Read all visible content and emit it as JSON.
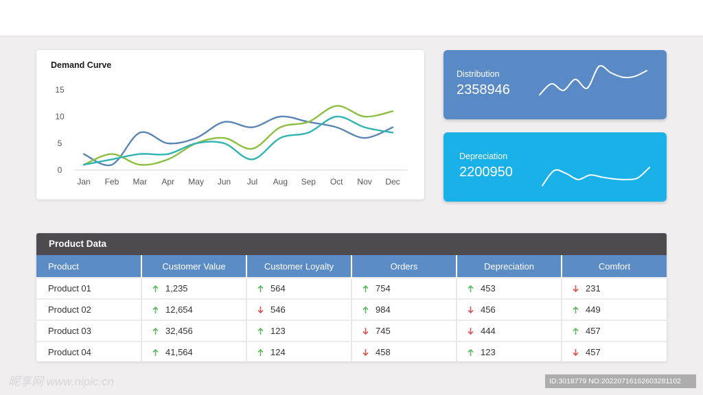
{
  "chart_data": {
    "type": "line",
    "title": "Demand Curve",
    "categories": [
      "Jan",
      "Feb",
      "Mar",
      "Apr",
      "May",
      "Jun",
      "Jul",
      "Aug",
      "Sep",
      "Oct",
      "Nov",
      "Dec"
    ],
    "yticks": [
      "15",
      "10",
      "5",
      "0"
    ],
    "ylim": [
      0,
      15
    ],
    "grid": false,
    "series": [
      {
        "color": "#5a86b5",
        "values": [
          3,
          1,
          7,
          5,
          6,
          9,
          8,
          10,
          9,
          8,
          6,
          8
        ]
      },
      {
        "color": "#8bbf3f",
        "values": [
          1,
          3,
          1,
          2,
          5,
          6,
          4,
          8,
          9,
          12,
          10,
          11
        ]
      },
      {
        "color": "#2fb3b3",
        "values": [
          1,
          2,
          3,
          3,
          5,
          5,
          2,
          6,
          7,
          10,
          8,
          7
        ]
      }
    ]
  },
  "stats": {
    "distribution": {
      "label": "Distribution",
      "value": "2358946",
      "color": "#5a8ac6",
      "spark": [
        0.2,
        0.45,
        0.3,
        0.55,
        0.35,
        0.85,
        0.7,
        0.6,
        0.62,
        0.75
      ]
    },
    "depreciation": {
      "label": "Depreciation",
      "value": "2200950",
      "color": "#1ab1e8",
      "spark": [
        0.1,
        0.6,
        0.5,
        0.3,
        0.45,
        0.38,
        0.32,
        0.3,
        0.35,
        0.7
      ]
    }
  },
  "table": {
    "title": "Product Data",
    "headers": [
      "Product",
      "Customer Value",
      "Customer Loyalty",
      "Orders",
      "Depreciation",
      "Comfort"
    ],
    "rows": [
      {
        "name": "Product 01",
        "cells": [
          {
            "v": "1,235",
            "d": "up"
          },
          {
            "v": "564",
            "d": "up"
          },
          {
            "v": "754",
            "d": "up"
          },
          {
            "v": "453",
            "d": "up"
          },
          {
            "v": "231",
            "d": "down"
          }
        ]
      },
      {
        "name": "Product 02",
        "cells": [
          {
            "v": "12,654",
            "d": "up"
          },
          {
            "v": "546",
            "d": "down"
          },
          {
            "v": "984",
            "d": "up"
          },
          {
            "v": "456",
            "d": "down"
          },
          {
            "v": "449",
            "d": "up"
          }
        ]
      },
      {
        "name": "Product 03",
        "cells": [
          {
            "v": "32,456",
            "d": "up"
          },
          {
            "v": "123",
            "d": "up"
          },
          {
            "v": "745",
            "d": "down"
          },
          {
            "v": "444",
            "d": "down"
          },
          {
            "v": "457",
            "d": "up"
          }
        ]
      },
      {
        "name": "Product 04",
        "cells": [
          {
            "v": "41,564",
            "d": "up"
          },
          {
            "v": "124",
            "d": "up"
          },
          {
            "v": "458",
            "d": "down"
          },
          {
            "v": "123",
            "d": "up"
          },
          {
            "v": "457",
            "d": "down"
          }
        ]
      }
    ]
  },
  "colors": {
    "up": "#5cb85c",
    "down": "#d9534f"
  },
  "watermark": {
    "left": "昵享网 www.nipic.cn",
    "right": "ID:3018779 NO:20220716162603281102"
  }
}
